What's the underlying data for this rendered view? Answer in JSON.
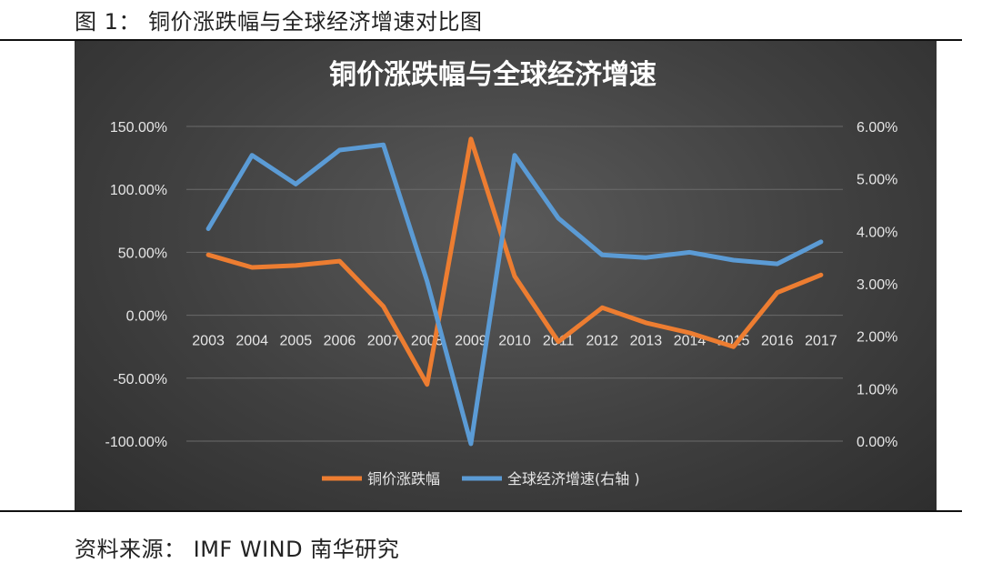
{
  "caption": "图 1： 铜价涨跌幅与全球经济增速对比图",
  "source": "资料来源： IMF WIND 南华研究",
  "colors": {
    "copper": "#ED7D31",
    "gdp": "#5B9BD5",
    "background": "#404040",
    "grid": "#6a6a6a"
  },
  "chart_data": {
    "type": "line",
    "title": "铜价涨跌幅与全球经济增速",
    "categories": [
      "2003",
      "2004",
      "2005",
      "2006",
      "2007",
      "2008",
      "2009",
      "2010",
      "2011",
      "2012",
      "2013",
      "2014",
      "2015",
      "2016",
      "2017"
    ],
    "series": [
      {
        "name": "铜价涨跌幅",
        "axis": "left",
        "values": [
          48,
          38,
          39.5,
          43,
          7,
          -55,
          140,
          31,
          -21,
          6,
          -6,
          -14,
          -25,
          18,
          32
        ]
      },
      {
        "name": "全球经济增速(右轴 )",
        "axis": "right",
        "values": [
          4.05,
          5.45,
          4.9,
          5.55,
          5.65,
          3.05,
          -0.05,
          5.45,
          4.25,
          3.55,
          3.5,
          3.6,
          3.45,
          3.38,
          3.8
        ]
      }
    ],
    "ylim_left": [
      -100,
      150
    ],
    "yticks_left": [
      "150.00%",
      "100.00%",
      "50.00%",
      "0.00%",
      "-50.00%",
      "-100.00%"
    ],
    "ylim_right": [
      0,
      6
    ],
    "yticks_right": [
      "6.00%",
      "5.00%",
      "4.00%",
      "3.00%",
      "2.00%",
      "1.00%",
      "0.00%"
    ],
    "grid": true,
    "legend_position": "bottom"
  }
}
